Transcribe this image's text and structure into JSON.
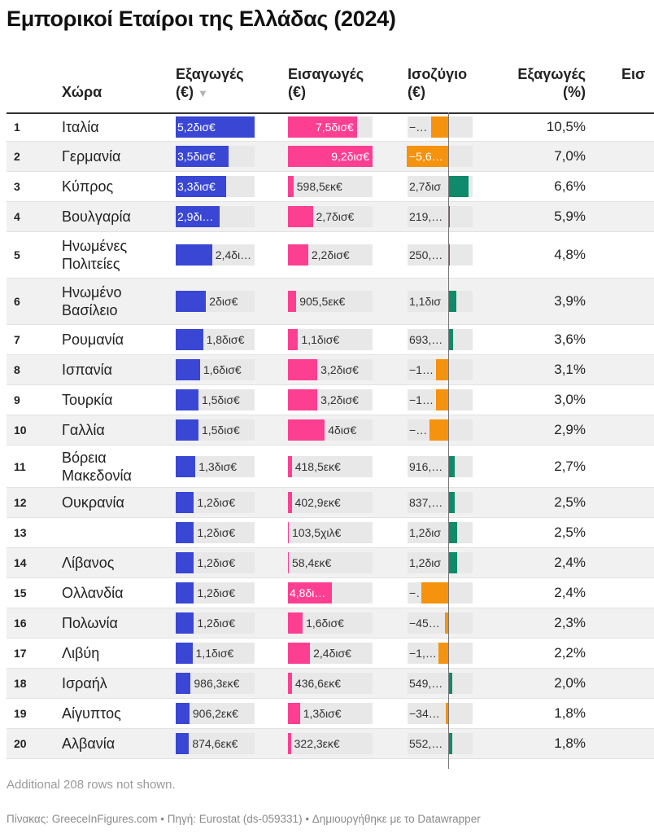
{
  "title": "Εμπορικοί Εταίροι της Ελλάδας (2024)",
  "header": {
    "country": "Χώρα",
    "exports": "Εξαγωγές",
    "exports_unit": "(€)",
    "sort_indicator": "▼",
    "imports": "Εισαγωγές",
    "imports_unit": "(€)",
    "balance": "Ισοζύγιο",
    "balance_unit": "(€)",
    "exports_pct": "Εξαγωγές",
    "exports_pct_unit": "(%)",
    "imports_pct_partial": "Εισ"
  },
  "colors": {
    "exports": "#3a47d5",
    "imports": "#fd3f92",
    "positive": "#0f8a6a",
    "negative": "#f5920e"
  },
  "chart_data": {
    "type": "table",
    "columns": [
      "Χώρα",
      "Εξαγωγές (€)",
      "Εισαγωγές (€)",
      "Ισοζύγιο (€)",
      "Εξαγωγές (%)"
    ],
    "rows": [
      {
        "rank": "1",
        "country": "Ιταλία",
        "exports": 5.2,
        "exports_label": "5,2δισ€",
        "imports": 7.5,
        "imports_label": "7,5δισ€",
        "balance": -2.3,
        "balance_label": "−2,…",
        "exports_pct": "10,5%"
      },
      {
        "rank": "2",
        "country": "Γερμανία",
        "exports": 3.5,
        "exports_label": "3,5δισ€",
        "imports": 9.2,
        "imports_label": "9,2δισ€",
        "balance": -5.6,
        "balance_label": "−5,6…",
        "exports_pct": "7,0%"
      },
      {
        "rank": "3",
        "country": "Κύπρος",
        "exports": 3.3,
        "exports_label": "3,3δισ€",
        "imports": 0.5985,
        "imports_label": "598,5εκ€",
        "balance": 2.7,
        "balance_label": "2,7δισ",
        "exports_pct": "6,6%"
      },
      {
        "rank": "4",
        "country": "Βουλγαρία",
        "exports": 2.9,
        "exports_label": "2,9δι…",
        "imports": 2.7,
        "imports_label": "2,7δισ€",
        "balance": 0.2198,
        "balance_label": "219,8…",
        "exports_pct": "5,9%"
      },
      {
        "rank": "5",
        "country": "Ηνωμένες Πολιτείες",
        "exports": 2.4,
        "exports_label": "2,4δι…",
        "imports": 2.2,
        "imports_label": "2,2δισ€",
        "balance": 0.2502,
        "balance_label": "250,2…",
        "exports_pct": "4,8%"
      },
      {
        "rank": "6",
        "country": "Ηνωμένο Βασίλειο",
        "exports": 2.0,
        "exports_label": "2δισ€",
        "imports": 0.9055,
        "imports_label": "905,5εκ€",
        "balance": 1.1,
        "balance_label": "1,1δισ",
        "exports_pct": "3,9%"
      },
      {
        "rank": "7",
        "country": "Ρουμανία",
        "exports": 1.8,
        "exports_label": "1,8δισ€",
        "imports": 1.1,
        "imports_label": "1,1δισ€",
        "balance": 0.6935,
        "balance_label": "693,5…",
        "exports_pct": "3,6%"
      },
      {
        "rank": "8",
        "country": "Ισπανία",
        "exports": 1.6,
        "exports_label": "1,6δισ€",
        "imports": 3.2,
        "imports_label": "3,2δισ€",
        "balance": -1.6,
        "balance_label": "−1,…",
        "exports_pct": "3,1%"
      },
      {
        "rank": "9",
        "country": "Τουρκία",
        "exports": 1.5,
        "exports_label": "1,5δισ€",
        "imports": 3.2,
        "imports_label": "3,2δισ€",
        "balance": -1.7,
        "balance_label": "−1,…",
        "exports_pct": "3,0%"
      },
      {
        "rank": "10",
        "country": "Γαλλία",
        "exports": 1.5,
        "exports_label": "1,5δισ€",
        "imports": 4.0,
        "imports_label": "4δισ€",
        "balance": -2.5,
        "balance_label": "−2,…",
        "exports_pct": "2,9%"
      },
      {
        "rank": "11",
        "country": "Βόρεια Μακεδονία",
        "exports": 1.3,
        "exports_label": "1,3δισ€",
        "imports": 0.4185,
        "imports_label": "418,5εκ€",
        "balance": 0.9163,
        "balance_label": "916,3…",
        "exports_pct": "2,7%"
      },
      {
        "rank": "12",
        "country": "Ουκρανία",
        "exports": 1.2,
        "exports_label": "1,2δισ€",
        "imports": 0.4029,
        "imports_label": "402,9εκ€",
        "balance": 0.8379,
        "balance_label": "837,9…",
        "exports_pct": "2,5%"
      },
      {
        "rank": "13",
        "country": "",
        "exports": 1.2,
        "exports_label": "1,2δισ€",
        "imports": 0.0001035,
        "imports_label": "103,5χιλ€",
        "balance": 1.2,
        "balance_label": "1,2δισ",
        "exports_pct": "2,5%"
      },
      {
        "rank": "14",
        "country": "Λίβανος",
        "exports": 1.2,
        "exports_label": "1,2δισ€",
        "imports": 0.0584,
        "imports_label": "58,4εκ€",
        "balance": 1.2,
        "balance_label": "1,2δισ",
        "exports_pct": "2,4%"
      },
      {
        "rank": "15",
        "country": "Ολλανδία",
        "exports": 1.2,
        "exports_label": "1,2δισ€",
        "imports": 4.8,
        "imports_label": "4,8δι…",
        "balance": -3.6,
        "balance_label": "−…",
        "exports_pct": "2,4%"
      },
      {
        "rank": "16",
        "country": "Πολωνία",
        "exports": 1.2,
        "exports_label": "1,2δισ€",
        "imports": 1.6,
        "imports_label": "1,6δισ€",
        "balance": -0.453,
        "balance_label": "−453,…",
        "exports_pct": "2,3%"
      },
      {
        "rank": "17",
        "country": "Λιβύη",
        "exports": 1.1,
        "exports_label": "1,1δισ€",
        "imports": 2.4,
        "imports_label": "2,4δισ€",
        "balance": -1.3,
        "balance_label": "−1,3…",
        "exports_pct": "2,2%"
      },
      {
        "rank": "18",
        "country": "Ισραήλ",
        "exports": 0.9863,
        "exports_label": "986,3εκ€",
        "imports": 0.4366,
        "imports_label": "436,6εκ€",
        "balance": 0.5497,
        "balance_label": "549,7…",
        "exports_pct": "2,0%"
      },
      {
        "rank": "19",
        "country": "Αίγυπτος",
        "exports": 0.9062,
        "exports_label": "906,2εκ€",
        "imports": 1.3,
        "imports_label": "1,3δισ€",
        "balance": -0.344,
        "balance_label": "−344,…",
        "exports_pct": "1,8%"
      },
      {
        "rank": "20",
        "country": "Αλβανία",
        "exports": 0.8746,
        "exports_label": "874,6εκ€",
        "imports": 0.3223,
        "imports_label": "322,3εκ€",
        "balance": 0.5523,
        "balance_label": "552,3…",
        "exports_pct": "1,8%"
      }
    ]
  },
  "note": "Additional 208 rows not shown.",
  "footer": "Πίνακας: GreeceInFigures.com • Πηγή: Eurostat (ds-059331) • Δημιουργήθηκε με το Datawrapper"
}
